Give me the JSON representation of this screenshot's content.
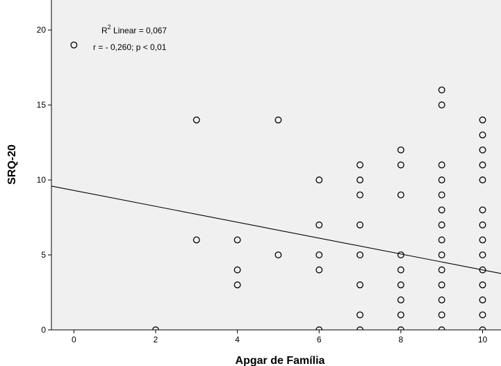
{
  "chart_data": {
    "type": "scatter",
    "xlabel": "Apgar de Família",
    "ylabel": "SRQ-20",
    "xlim": [
      -0.55,
      10.45
    ],
    "ylim": [
      0,
      22
    ],
    "x_ticks": [
      0,
      2,
      4,
      6,
      8,
      10
    ],
    "y_ticks": [
      0,
      5,
      10,
      15,
      20
    ],
    "x_tick_labels": [
      "0",
      "2",
      "4",
      "6",
      "8",
      "10"
    ],
    "y_tick_labels": [
      "0",
      "5",
      "10",
      "15",
      "20"
    ],
    "grid": false,
    "background_color": "#f0f0f0",
    "point_color": "#000000",
    "line_color": "#000000",
    "points": [
      {
        "x": 0,
        "y": 19
      },
      {
        "x": 2,
        "y": 0
      },
      {
        "x": 3,
        "y": 14
      },
      {
        "x": 3,
        "y": 6
      },
      {
        "x": 4,
        "y": 6
      },
      {
        "x": 4,
        "y": 4
      },
      {
        "x": 4,
        "y": 3
      },
      {
        "x": 5,
        "y": 14
      },
      {
        "x": 5,
        "y": 5
      },
      {
        "x": 6,
        "y": 10
      },
      {
        "x": 6,
        "y": 7
      },
      {
        "x": 6,
        "y": 5
      },
      {
        "x": 6,
        "y": 4
      },
      {
        "x": 6,
        "y": 0
      },
      {
        "x": 7,
        "y": 11
      },
      {
        "x": 7,
        "y": 10
      },
      {
        "x": 7,
        "y": 9
      },
      {
        "x": 7,
        "y": 7
      },
      {
        "x": 7,
        "y": 5
      },
      {
        "x": 7,
        "y": 3
      },
      {
        "x": 7,
        "y": 1
      },
      {
        "x": 7,
        "y": 0
      },
      {
        "x": 8,
        "y": 12
      },
      {
        "x": 8,
        "y": 11
      },
      {
        "x": 8,
        "y": 9
      },
      {
        "x": 8,
        "y": 5
      },
      {
        "x": 8,
        "y": 4
      },
      {
        "x": 8,
        "y": 3
      },
      {
        "x": 8,
        "y": 2
      },
      {
        "x": 8,
        "y": 1
      },
      {
        "x": 8,
        "y": 0
      },
      {
        "x": 9,
        "y": 16
      },
      {
        "x": 9,
        "y": 15
      },
      {
        "x": 9,
        "y": 11
      },
      {
        "x": 9,
        "y": 10
      },
      {
        "x": 9,
        "y": 9
      },
      {
        "x": 9,
        "y": 8
      },
      {
        "x": 9,
        "y": 7
      },
      {
        "x": 9,
        "y": 6
      },
      {
        "x": 9,
        "y": 5
      },
      {
        "x": 9,
        "y": 4
      },
      {
        "x": 9,
        "y": 3
      },
      {
        "x": 9,
        "y": 2
      },
      {
        "x": 9,
        "y": 1
      },
      {
        "x": 9,
        "y": 0
      },
      {
        "x": 10,
        "y": 14
      },
      {
        "x": 10,
        "y": 13
      },
      {
        "x": 10,
        "y": 12
      },
      {
        "x": 10,
        "y": 11
      },
      {
        "x": 10,
        "y": 10
      },
      {
        "x": 10,
        "y": 8
      },
      {
        "x": 10,
        "y": 7
      },
      {
        "x": 10,
        "y": 6
      },
      {
        "x": 10,
        "y": 5
      },
      {
        "x": 10,
        "y": 4
      },
      {
        "x": 10,
        "y": 3
      },
      {
        "x": 10,
        "y": 2
      },
      {
        "x": 10,
        "y": 1
      },
      {
        "x": 10,
        "y": 0
      }
    ],
    "fit_line": {
      "intercept": 9.3,
      "slope": -0.53
    },
    "annotations": {
      "r2_prefix": "R",
      "r2_sup": "2",
      "r2_suffix": " Linear = 0,067",
      "correlation": "r = - 0,260; p < 0,01"
    }
  }
}
